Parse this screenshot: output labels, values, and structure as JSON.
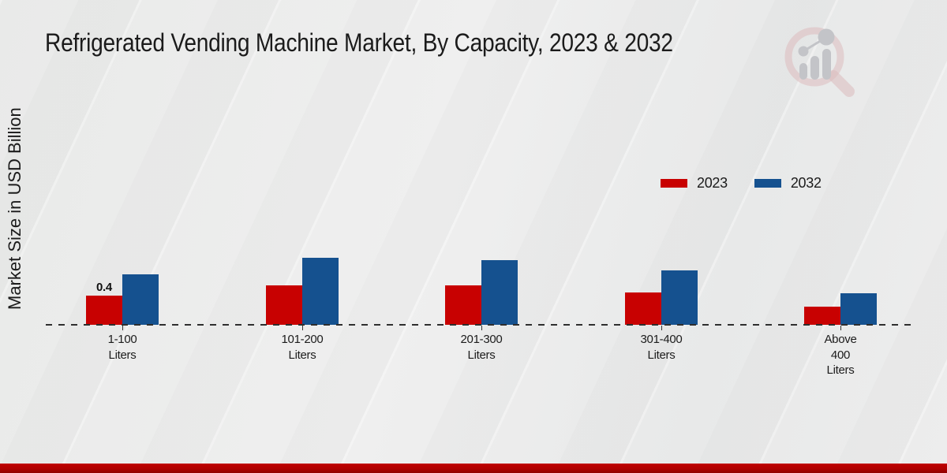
{
  "page": {
    "title": "Refrigerated Vending Machine Market, By Capacity, 2023 & 2032"
  },
  "branding": {
    "logo_icon": "magnifier-bar-chart-watermark-icon",
    "footer_bar_color": "#b00000"
  },
  "chart_data": {
    "type": "bar",
    "title": "Refrigerated Vending Machine Market, By Capacity, 2023 & 2032",
    "xlabel": "",
    "ylabel": "Market Size in USD Billion",
    "categories": [
      "1-100 Liters",
      "101-200 Liters",
      "201-300 Liters",
      "301-400 Liters",
      "Above 400 Liters"
    ],
    "category_label_lines": [
      [
        "1-100",
        "Liters"
      ],
      [
        "101-200",
        "Liters"
      ],
      [
        "201-300",
        "Liters"
      ],
      [
        "301-400",
        "Liters"
      ],
      [
        "Above",
        "400",
        "Liters"
      ]
    ],
    "series": [
      {
        "name": "2023",
        "color": "#c80101",
        "values": [
          0.4,
          0.54,
          0.54,
          0.44,
          0.25
        ],
        "value_labels": [
          "0.4",
          "",
          "",
          "",
          ""
        ]
      },
      {
        "name": "2032",
        "color": "#15518f",
        "values": [
          0.69,
          0.92,
          0.89,
          0.75,
          0.43
        ],
        "value_labels": [
          "",
          "",
          "",
          "",
          ""
        ]
      }
    ],
    "ylim": [
      0,
      1
    ],
    "grid": false,
    "baseline_style": "dashed",
    "legend_position": "upper-right-inside",
    "only_labeled_value": "0.4"
  }
}
